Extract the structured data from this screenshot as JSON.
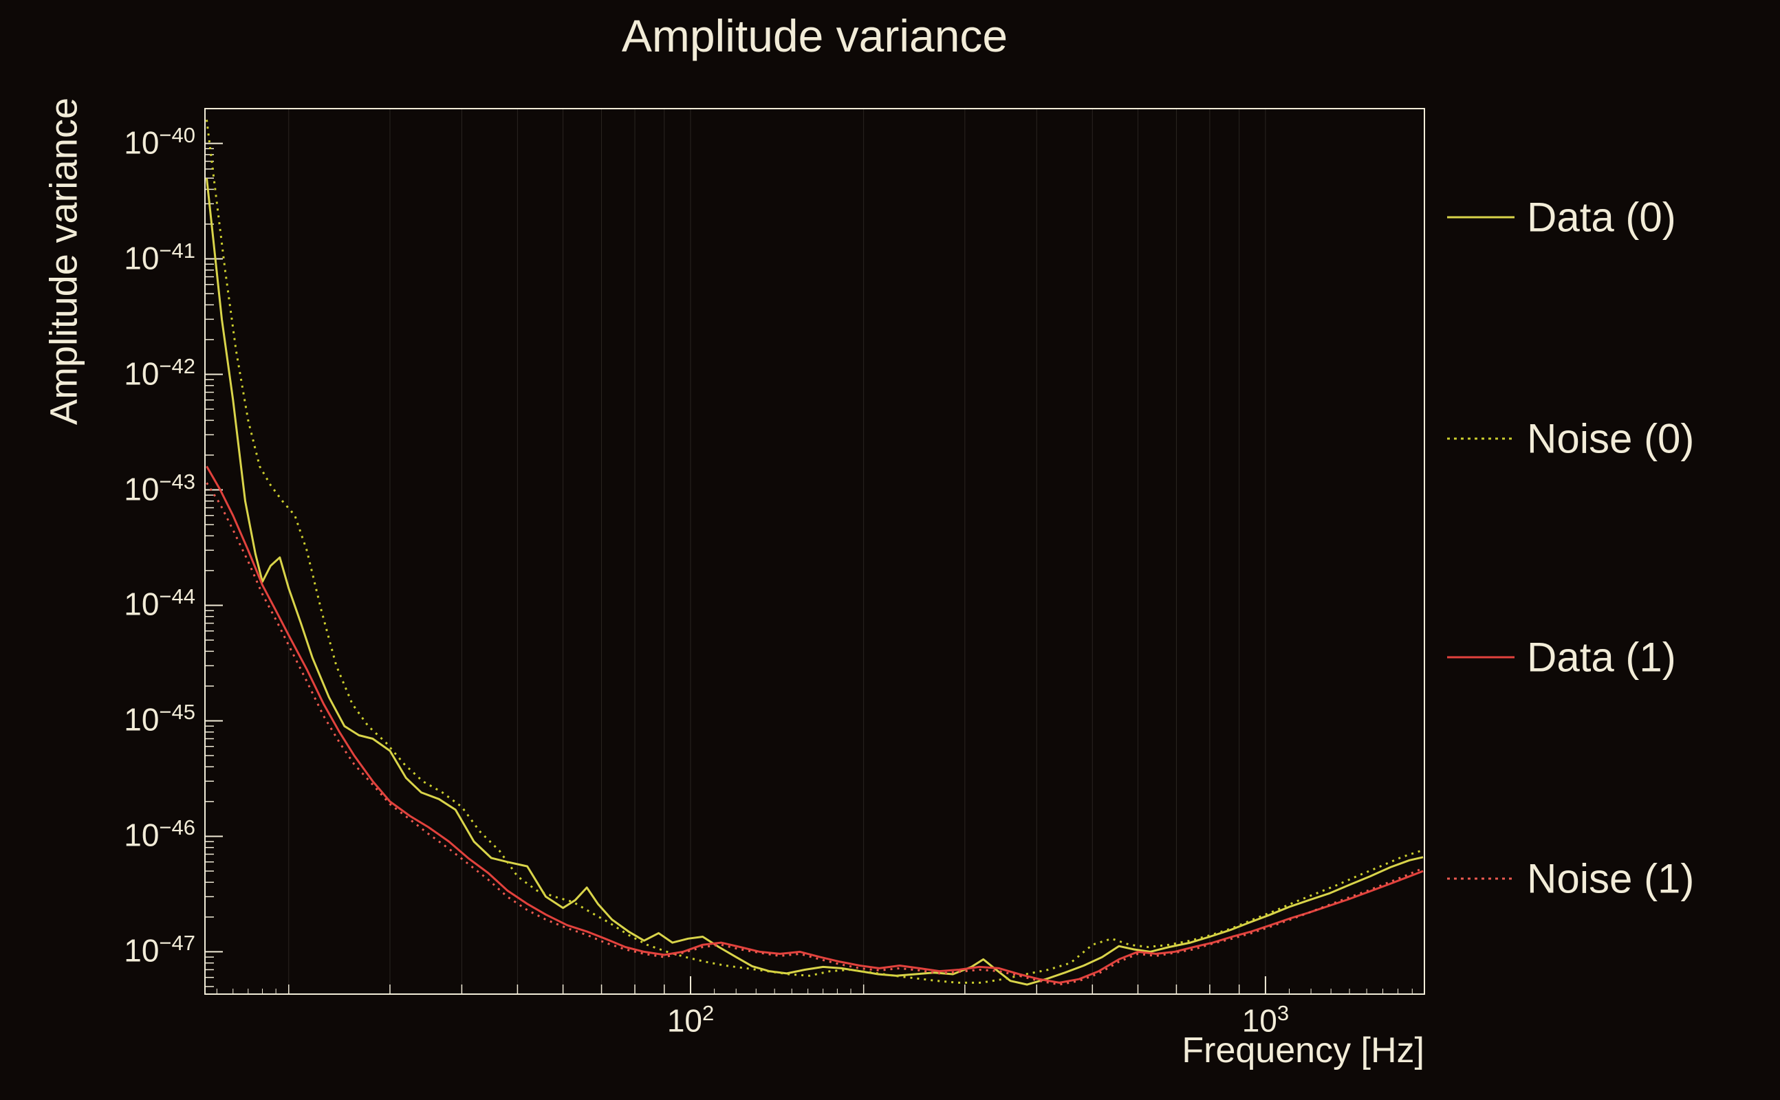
{
  "colors": {
    "background": "#0d0806",
    "foreground": "#f2ecd8",
    "grid": "#f2ecd8"
  },
  "chart_data": {
    "type": "line",
    "title": "Amplitude variance",
    "xlabel": "Frequency [Hz]",
    "ylabel": "Amplitude variance",
    "x_scale": "log",
    "y_scale": "log",
    "xlim": [
      14.3,
      1890
    ],
    "ylim": [
      4.3e-48,
      2e-40
    ],
    "x_tick_exponents": [
      2,
      3
    ],
    "y_tick_exponents": [
      -40,
      -41,
      -42,
      -43,
      -44,
      -45,
      -46,
      -47
    ],
    "x_tick_labels": [
      "10^2",
      "10^3"
    ],
    "y_tick_labels": [
      "10^-40",
      "10^-41",
      "10^-42",
      "10^-43",
      "10^-44",
      "10^-45",
      "10^-46",
      "10^-47"
    ],
    "grid": "vertical-log-minor",
    "legend_position": "right-outside",
    "series": [
      {
        "name": "Data (0)",
        "color": "#d9d44a",
        "style": "solid",
        "points": [
          [
            14.4,
            5e-41
          ],
          [
            14.8,
            1.4e-41
          ],
          [
            15.3,
            3e-42
          ],
          [
            16.0,
            6e-43
          ],
          [
            16.8,
            8e-44
          ],
          [
            17.5,
            2.8e-44
          ],
          [
            18.0,
            1.6e-44
          ],
          [
            18.6,
            2.2e-44
          ],
          [
            19.3,
            2.6e-44
          ],
          [
            20.0,
            1.4e-44
          ],
          [
            21.0,
            7e-45
          ],
          [
            22.0,
            3.5e-45
          ],
          [
            23.5,
            1.6e-45
          ],
          [
            25.0,
            9e-46
          ],
          [
            26.5,
            7.5e-46
          ],
          [
            28.0,
            7e-46
          ],
          [
            30.0,
            5.5e-46
          ],
          [
            32.0,
            3.2e-46
          ],
          [
            34.0,
            2.4e-46
          ],
          [
            36.5,
            2.1e-46
          ],
          [
            39.0,
            1.7e-46
          ],
          [
            42.0,
            9e-47
          ],
          [
            45.0,
            6.5e-47
          ],
          [
            48.0,
            6e-47
          ],
          [
            52.0,
            5.5e-47
          ],
          [
            56.0,
            3e-47
          ],
          [
            60.0,
            2.4e-47
          ],
          [
            63.0,
            2.8e-47
          ],
          [
            66.0,
            3.6e-47
          ],
          [
            69.0,
            2.6e-47
          ],
          [
            73.0,
            1.9e-47
          ],
          [
            78.0,
            1.5e-47
          ],
          [
            83.0,
            1.25e-47
          ],
          [
            88.0,
            1.45e-47
          ],
          [
            93.0,
            1.2e-47
          ],
          [
            99.0,
            1.3e-47
          ],
          [
            105.0,
            1.35e-47
          ],
          [
            112.0,
            1.1e-47
          ],
          [
            120.0,
            9e-48
          ],
          [
            128.0,
            7.5e-48
          ],
          [
            137.0,
            6.8e-48
          ],
          [
            147.0,
            6.5e-48
          ],
          [
            158.0,
            7e-48
          ],
          [
            170.0,
            7.4e-48
          ],
          [
            183.0,
            7.2e-48
          ],
          [
            197.0,
            6.8e-48
          ],
          [
            212.0,
            6.4e-48
          ],
          [
            228.0,
            6.2e-48
          ],
          [
            246.0,
            6.4e-48
          ],
          [
            265.0,
            6.6e-48
          ],
          [
            286.0,
            6.4e-48
          ],
          [
            308.0,
            7.4e-48
          ],
          [
            323.0,
            8.6e-48
          ],
          [
            340.0,
            7e-48
          ],
          [
            360.0,
            5.6e-48
          ],
          [
            385.0,
            5.2e-48
          ],
          [
            415.0,
            5.8e-48
          ],
          [
            448.0,
            6.6e-48
          ],
          [
            483.0,
            7.6e-48
          ],
          [
            520.0,
            9e-48
          ],
          [
            556.0,
            1.12e-47
          ],
          [
            590.0,
            1.05e-47
          ],
          [
            630.0,
            1e-47
          ],
          [
            680.0,
            1.1e-47
          ],
          [
            740.0,
            1.2e-47
          ],
          [
            800.0,
            1.35e-47
          ],
          [
            870.0,
            1.55e-47
          ],
          [
            940.0,
            1.8e-47
          ],
          [
            1020.0,
            2.1e-47
          ],
          [
            1100.0,
            2.45e-47
          ],
          [
            1190.0,
            2.8e-47
          ],
          [
            1290.0,
            3.2e-47
          ],
          [
            1400.0,
            3.8e-47
          ],
          [
            1520.0,
            4.5e-47
          ],
          [
            1650.0,
            5.4e-47
          ],
          [
            1780.0,
            6.2e-47
          ],
          [
            1880.0,
            6.6e-47
          ]
        ]
      },
      {
        "name": "Noise (0)",
        "color": "#ccce2e",
        "style": "dotted",
        "points": [
          [
            14.4,
            1.6e-40
          ],
          [
            14.9,
            4e-41
          ],
          [
            15.5,
            8e-42
          ],
          [
            16.2,
            1.6e-42
          ],
          [
            17.0,
            4e-43
          ],
          [
            17.8,
            1.6e-43
          ],
          [
            18.6,
            1.1e-43
          ],
          [
            19.5,
            8e-44
          ],
          [
            20.5,
            6e-44
          ],
          [
            21.5,
            3e-44
          ],
          [
            22.8,
            9e-45
          ],
          [
            24.2,
            3e-45
          ],
          [
            25.8,
            1.4e-45
          ],
          [
            27.5,
            9e-46
          ],
          [
            29.5,
            6.5e-46
          ],
          [
            31.8,
            4.2e-46
          ],
          [
            34.2,
            3e-46
          ],
          [
            37.0,
            2.4e-46
          ],
          [
            40.0,
            1.8e-46
          ],
          [
            43.0,
            1.1e-46
          ],
          [
            46.5,
            7.5e-47
          ],
          [
            50.0,
            4.5e-47
          ],
          [
            54.0,
            3.4e-47
          ],
          [
            58.0,
            3e-47
          ],
          [
            62.5,
            2.7e-47
          ],
          [
            67.0,
            2.2e-47
          ],
          [
            72.0,
            1.8e-47
          ],
          [
            78.0,
            1.4e-47
          ],
          [
            84.0,
            1.15e-47
          ],
          [
            91.0,
            1e-47
          ],
          [
            98.0,
            9e-48
          ],
          [
            106.0,
            8.2e-48
          ],
          [
            115.0,
            7.6e-48
          ],
          [
            125.0,
            7.2e-48
          ],
          [
            136.0,
            6.8e-48
          ],
          [
            148.0,
            6.4e-48
          ],
          [
            161.0,
            6.2e-48
          ],
          [
            175.0,
            6.8e-48
          ],
          [
            190.0,
            7e-48
          ],
          [
            207.0,
            6.6e-48
          ],
          [
            226.0,
            6.2e-48
          ],
          [
            246.0,
            5.9e-48
          ],
          [
            268.0,
            5.6e-48
          ],
          [
            293.0,
            5.4e-48
          ],
          [
            320.0,
            5.4e-48
          ],
          [
            350.0,
            5.8e-48
          ],
          [
            383.0,
            6.4e-48
          ],
          [
            419.0,
            7e-48
          ],
          [
            458.0,
            8e-48
          ],
          [
            500.0,
            1.15e-47
          ],
          [
            540.0,
            1.3e-47
          ],
          [
            580.0,
            1.15e-47
          ],
          [
            625.0,
            1.1e-47
          ],
          [
            680.0,
            1.15e-47
          ],
          [
            740.0,
            1.25e-47
          ],
          [
            805.0,
            1.4e-47
          ],
          [
            875.0,
            1.6e-47
          ],
          [
            950.0,
            1.9e-47
          ],
          [
            1035.0,
            2.25e-47
          ],
          [
            1125.0,
            2.7e-47
          ],
          [
            1225.0,
            3.2e-47
          ],
          [
            1335.0,
            3.8e-47
          ],
          [
            1455.0,
            4.6e-47
          ],
          [
            1585.0,
            5.5e-47
          ],
          [
            1725.0,
            6.6e-47
          ],
          [
            1880.0,
            7.6e-47
          ]
        ]
      },
      {
        "name": "Data (1)",
        "color": "#e2423d",
        "style": "solid",
        "points": [
          [
            14.4,
            1.6e-43
          ],
          [
            15.2,
            1e-43
          ],
          [
            16.0,
            6e-44
          ],
          [
            17.0,
            3e-44
          ],
          [
            18.0,
            1.5e-44
          ],
          [
            19.0,
            9e-45
          ],
          [
            20.0,
            5.5e-45
          ],
          [
            21.5,
            2.8e-45
          ],
          [
            23.0,
            1.4e-45
          ],
          [
            24.5,
            8e-46
          ],
          [
            26.0,
            5e-46
          ],
          [
            28.0,
            3e-46
          ],
          [
            30.0,
            2e-46
          ],
          [
            32.5,
            1.5e-46
          ],
          [
            35.0,
            1.2e-46
          ],
          [
            38.0,
            9e-47
          ],
          [
            41.0,
            6.5e-47
          ],
          [
            44.5,
            4.8e-47
          ],
          [
            48.0,
            3.4e-47
          ],
          [
            52.0,
            2.6e-47
          ],
          [
            56.0,
            2.1e-47
          ],
          [
            61.0,
            1.7e-47
          ],
          [
            66.0,
            1.5e-47
          ],
          [
            71.0,
            1.3e-47
          ],
          [
            77.0,
            1.1e-47
          ],
          [
            83.0,
            1e-47
          ],
          [
            90.0,
            9.4e-48
          ],
          [
            97.0,
            1e-47
          ],
          [
            105.0,
            1.15e-47
          ],
          [
            113.0,
            1.2e-47
          ],
          [
            122.0,
            1.1e-47
          ],
          [
            132.0,
            1e-47
          ],
          [
            143.0,
            9.6e-48
          ],
          [
            155.0,
            1e-47
          ],
          [
            168.0,
            9e-48
          ],
          [
            182.0,
            8.2e-48
          ],
          [
            197.0,
            7.6e-48
          ],
          [
            213.0,
            7.2e-48
          ],
          [
            231.0,
            7.6e-48
          ],
          [
            250.0,
            7.2e-48
          ],
          [
            271.0,
            6.8e-48
          ],
          [
            293.0,
            7e-48
          ],
          [
            318.0,
            7.4e-48
          ],
          [
            344.0,
            7.2e-48
          ],
          [
            373.0,
            6.4e-48
          ],
          [
            404.0,
            5.8e-48
          ],
          [
            438.0,
            5.4e-48
          ],
          [
            474.0,
            5.8e-48
          ],
          [
            513.0,
            6.8e-48
          ],
          [
            556.0,
            8.6e-48
          ],
          [
            600.0,
            1e-47
          ],
          [
            645.0,
            9.6e-48
          ],
          [
            695.0,
            1e-47
          ],
          [
            750.0,
            1.1e-47
          ],
          [
            810.0,
            1.2e-47
          ],
          [
            875.0,
            1.35e-47
          ],
          [
            945.0,
            1.5e-47
          ],
          [
            1020.0,
            1.7e-47
          ],
          [
            1105.0,
            1.95e-47
          ],
          [
            1195.0,
            2.2e-47
          ],
          [
            1290.0,
            2.5e-47
          ],
          [
            1395.0,
            2.85e-47
          ],
          [
            1510.0,
            3.3e-47
          ],
          [
            1630.0,
            3.8e-47
          ],
          [
            1760.0,
            4.4e-47
          ],
          [
            1880.0,
            5e-47
          ]
        ]
      },
      {
        "name": "Noise (1)",
        "color": "#eb5a50",
        "style": "dotted",
        "points": [
          [
            14.4,
            1.15e-43
          ],
          [
            15.2,
            7.5e-44
          ],
          [
            16.0,
            4.5e-44
          ],
          [
            17.0,
            2.4e-44
          ],
          [
            18.0,
            1.25e-44
          ],
          [
            19.0,
            7.5e-45
          ],
          [
            20.0,
            4.5e-45
          ],
          [
            21.5,
            2.2e-45
          ],
          [
            23.0,
            1.1e-45
          ],
          [
            24.5,
            6.5e-46
          ],
          [
            26.0,
            4.2e-46
          ],
          [
            28.0,
            2.8e-46
          ],
          [
            30.0,
            1.9e-46
          ],
          [
            32.5,
            1.4e-46
          ],
          [
            35.0,
            1.05e-46
          ],
          [
            38.0,
            7.8e-47
          ],
          [
            41.0,
            5.8e-47
          ],
          [
            44.5,
            4.2e-47
          ],
          [
            48.0,
            3e-47
          ],
          [
            52.0,
            2.3e-47
          ],
          [
            56.0,
            1.9e-47
          ],
          [
            61.0,
            1.6e-47
          ],
          [
            66.0,
            1.4e-47
          ],
          [
            71.0,
            1.2e-47
          ],
          [
            77.0,
            1.05e-47
          ],
          [
            83.0,
            9.6e-48
          ],
          [
            90.0,
            9e-48
          ],
          [
            97.0,
            9.8e-48
          ],
          [
            105.0,
            1.1e-47
          ],
          [
            113.0,
            1.15e-47
          ],
          [
            122.0,
            1.05e-47
          ],
          [
            132.0,
            9.8e-48
          ],
          [
            143.0,
            9.2e-48
          ],
          [
            155.0,
            9.6e-48
          ],
          [
            168.0,
            8.6e-48
          ],
          [
            182.0,
            7.8e-48
          ],
          [
            197.0,
            7.2e-48
          ],
          [
            213.0,
            6.9e-48
          ],
          [
            231.0,
            7.2e-48
          ],
          [
            250.0,
            6.9e-48
          ],
          [
            271.0,
            6.5e-48
          ],
          [
            293.0,
            6.7e-48
          ],
          [
            318.0,
            7e-48
          ],
          [
            344.0,
            6.8e-48
          ],
          [
            373.0,
            6.2e-48
          ],
          [
            404.0,
            5.6e-48
          ],
          [
            438.0,
            5.2e-48
          ],
          [
            474.0,
            5.6e-48
          ],
          [
            513.0,
            6.5e-48
          ],
          [
            556.0,
            8.2e-48
          ],
          [
            600.0,
            9.6e-48
          ],
          [
            645.0,
            9.2e-48
          ],
          [
            695.0,
            9.8e-48
          ],
          [
            750.0,
            1.05e-47
          ],
          [
            810.0,
            1.18e-47
          ],
          [
            875.0,
            1.3e-47
          ],
          [
            945.0,
            1.45e-47
          ],
          [
            1020.0,
            1.65e-47
          ],
          [
            1105.0,
            1.9e-47
          ],
          [
            1195.0,
            2.2e-47
          ],
          [
            1290.0,
            2.55e-47
          ],
          [
            1395.0,
            2.95e-47
          ],
          [
            1510.0,
            3.4e-47
          ],
          [
            1630.0,
            3.95e-47
          ],
          [
            1760.0,
            4.6e-47
          ],
          [
            1880.0,
            5.3e-47
          ]
        ]
      }
    ]
  }
}
